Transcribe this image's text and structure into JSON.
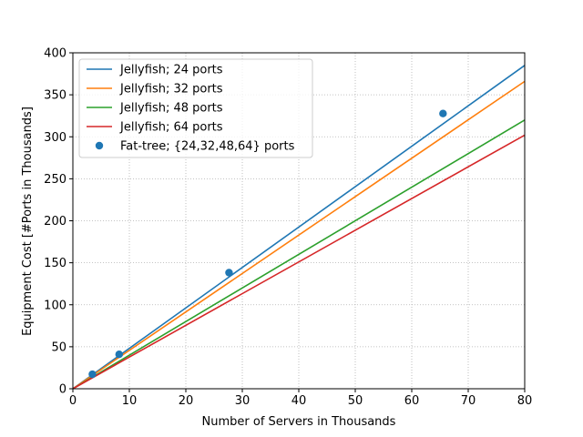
{
  "chart_data": {
    "type": "line",
    "title": "",
    "xlabel": "Number of Servers in Thousands",
    "ylabel": "Equipment Cost [#Ports in Thousands]",
    "xlim": [
      0,
      80
    ],
    "ylim": [
      0,
      400
    ],
    "xticks": [
      0,
      10,
      20,
      30,
      40,
      50,
      60,
      70,
      80
    ],
    "yticks": [
      0,
      50,
      100,
      150,
      200,
      250,
      300,
      350,
      400
    ],
    "grid": true,
    "legend_position": "top-left",
    "series": [
      {
        "name": "Jellyfish; 24 ports",
        "kind": "line",
        "color": "#1f77b4",
        "x": [
          0,
          80
        ],
        "y": [
          0,
          385
        ]
      },
      {
        "name": "Jellyfish; 32 ports",
        "kind": "line",
        "color": "#ff7f0e",
        "x": [
          0,
          80
        ],
        "y": [
          0,
          366
        ]
      },
      {
        "name": "Jellyfish; 48 ports",
        "kind": "line",
        "color": "#2ca02c",
        "x": [
          0,
          80
        ],
        "y": [
          0,
          320
        ]
      },
      {
        "name": "Jellyfish; 64 ports",
        "kind": "line",
        "color": "#d62728",
        "x": [
          0,
          80
        ],
        "y": [
          0,
          302
        ]
      },
      {
        "name": "Fat-tree; {24,32,48,64} ports",
        "kind": "scatter",
        "color": "#1f77b4",
        "x": [
          3.456,
          8.192,
          27.648,
          65.536
        ],
        "y": [
          17.28,
          40.96,
          138.24,
          327.68
        ]
      }
    ]
  }
}
